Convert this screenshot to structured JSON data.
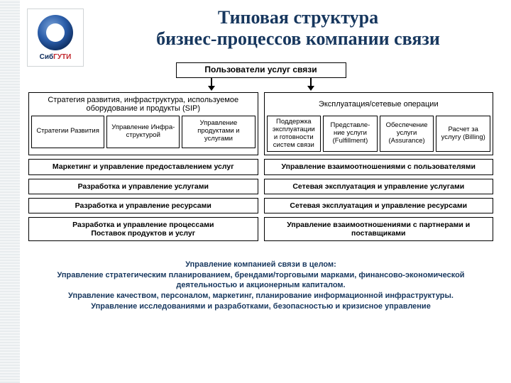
{
  "logo": {
    "text_part1": "Сиб",
    "text_part2": "ГУТИ"
  },
  "title": "Типовая структура\nбизнес-процессов компании связи",
  "users_box": "Пользователи услуг связи",
  "left": {
    "header": "Стратегия развития, инфраструктура, используемое оборудование и продукты (SIP)",
    "subs": [
      "Стратегии Развития",
      "Управление Инфра-структурой",
      "Управление продуктами и услугами"
    ]
  },
  "right": {
    "header": "Эксплуатация/сетевые операции",
    "subs": [
      "Поддержка эксплуатации и готовности систем связи",
      "Представле-ние услуги (Fulfillment)",
      "Обеспечение услуги (Assurance)",
      "Расчет за услугу (Billing)"
    ]
  },
  "bars": [
    {
      "l": "Маркетинг и управление предоставлением услуг",
      "r": "Управление взаимоотношениями с пользователями"
    },
    {
      "l": "Разработка и управление услугами",
      "r": "Сетевая эксплуатация и управление услугами"
    },
    {
      "l": "Разработка и управление ресурсами",
      "r": "Сетевая эксплуатация и управление ресурсами"
    }
  ],
  "full_bars": [
    "Разработка и управление процессами\nПоставок продуктов и услуг",
    "Управление взаимоотношениями с партнерами и поставщиками"
  ],
  "footer": "Управление компанией связи в целом:\nУправление стратегическим планированием, брендами/торговыми марками, финансово-экономической деятельностью и акционерным капиталом.\nУправление качеством, персоналом, маркетинг, планирование информационной инфраструктуры.\nУправление исследованиями и разработками, безопасностью и кризисное управление",
  "colors": {
    "title": "#17375e",
    "border": "#000000",
    "bg": "#ffffff"
  }
}
